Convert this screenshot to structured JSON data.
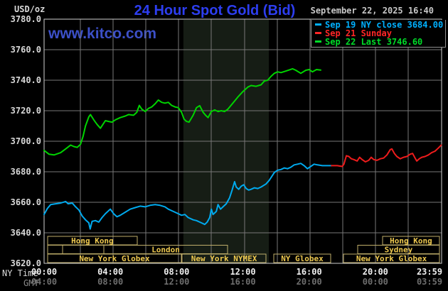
{
  "header": {
    "unit": "USD/oz",
    "title": "24 Hour Spot Gold (Bid)",
    "date": "September 22, 2025 16:40",
    "watermark": "www.kitco.com"
  },
  "legend": {
    "entries": [
      {
        "label": "Sep 19 NY close 3684.00",
        "color": "#00b0ff"
      },
      {
        "label": "Sep 21 Sunday",
        "color": "#ff2626"
      },
      {
        "label": "Sep 22 Last 3746.60",
        "color": "#00dc28"
      }
    ]
  },
  "axis": {
    "ny_label": "NY Time",
    "gmt_label": "GMT",
    "tick_hours": [
      0,
      4,
      8,
      12,
      16,
      20,
      23.983
    ],
    "ny_ticks": [
      "00:00",
      "04:00",
      "08:00",
      "12:00",
      "16:00",
      "20:00",
      "23:59"
    ],
    "gmt_ticks": [
      "04:00",
      "08:00",
      "12:00",
      "16:00",
      "20:00",
      "00:00",
      "03:59"
    ],
    "y_tick_values": [
      3780,
      3760,
      3740,
      3720,
      3700,
      3680,
      3660,
      3640,
      3620
    ],
    "y_tick_labels": [
      "3780.0",
      "3760.0",
      "3740.0",
      "3720.0",
      "3700.0",
      "3680.0",
      "3660.0",
      "3640.0",
      "3620.0"
    ]
  },
  "chart_data": {
    "type": "line",
    "title": "24 Hour Spot Gold (Bid)",
    "ylabel": "USD/oz",
    "xlabel": "NY Time",
    "x_range_hours": [
      0,
      24
    ],
    "ylim": [
      3620,
      3780
    ],
    "y_step": 20,
    "grid": true,
    "x_gridline_every_hours": 2,
    "shaded_band_hours": [
      8.41,
      13.57
    ],
    "colors": {
      "background": "#000000",
      "gridline": "#787878",
      "border": "#cfcfcf",
      "shaded_band": "#161d15",
      "session_border": "#bfae6a",
      "session_text": "#edc84f"
    },
    "series": [
      {
        "name": "Sep 19 NY close 3684.00",
        "color": "#00aaee",
        "points": [
          [
            0,
            3652
          ],
          [
            0.2,
            3656
          ],
          [
            0.4,
            3658.5
          ],
          [
            0.7,
            3659
          ],
          [
            1,
            3659.5
          ],
          [
            1.3,
            3660.5
          ],
          [
            1.45,
            3659
          ],
          [
            1.7,
            3659.5
          ],
          [
            1.9,
            3657
          ],
          [
            2.1,
            3655
          ],
          [
            2.3,
            3651
          ],
          [
            2.5,
            3648.5
          ],
          [
            2.7,
            3646.5
          ],
          [
            2.78,
            3642.5
          ],
          [
            2.9,
            3647.5
          ],
          [
            3.1,
            3648
          ],
          [
            3.3,
            3647
          ],
          [
            3.5,
            3650
          ],
          [
            3.7,
            3652.5
          ],
          [
            3.9,
            3654.5
          ],
          [
            4,
            3655.5
          ],
          [
            4.2,
            3652.5
          ],
          [
            4.4,
            3650.5
          ],
          [
            4.6,
            3651.5
          ],
          [
            4.9,
            3653.5
          ],
          [
            5.2,
            3655.5
          ],
          [
            5.5,
            3656.5
          ],
          [
            5.8,
            3657.5
          ],
          [
            6.1,
            3657
          ],
          [
            6.4,
            3658
          ],
          [
            6.7,
            3658.5
          ],
          [
            7,
            3658
          ],
          [
            7.3,
            3657
          ],
          [
            7.5,
            3655.5
          ],
          [
            7.8,
            3654
          ],
          [
            8.1,
            3652.5
          ],
          [
            8.3,
            3651.5
          ],
          [
            8.5,
            3652
          ],
          [
            8.7,
            3650
          ],
          [
            9,
            3648.5
          ],
          [
            9.2,
            3648
          ],
          [
            9.5,
            3646.5
          ],
          [
            9.7,
            3645.5
          ],
          [
            9.85,
            3647
          ],
          [
            10,
            3650
          ],
          [
            10.1,
            3655.5
          ],
          [
            10.2,
            3652
          ],
          [
            10.4,
            3654
          ],
          [
            10.5,
            3658.5
          ],
          [
            10.65,
            3655.5
          ],
          [
            10.8,
            3657
          ],
          [
            11,
            3659
          ],
          [
            11.2,
            3663
          ],
          [
            11.35,
            3668
          ],
          [
            11.5,
            3673.5
          ],
          [
            11.6,
            3670
          ],
          [
            11.75,
            3668.5
          ],
          [
            11.9,
            3670.5
          ],
          [
            12.05,
            3671.5
          ],
          [
            12.2,
            3669
          ],
          [
            12.35,
            3668
          ],
          [
            12.5,
            3668.5
          ],
          [
            12.7,
            3669.5
          ],
          [
            12.9,
            3669
          ],
          [
            13.1,
            3670
          ],
          [
            13.4,
            3672
          ],
          [
            13.6,
            3674.5
          ],
          [
            13.75,
            3677
          ],
          [
            13.9,
            3679.5
          ],
          [
            14.1,
            3681
          ],
          [
            14.3,
            3681.5
          ],
          [
            14.5,
            3682.5
          ],
          [
            14.7,
            3682
          ],
          [
            14.9,
            3683
          ],
          [
            15.1,
            3684.5
          ],
          [
            15.3,
            3685
          ],
          [
            15.5,
            3685.5
          ],
          [
            15.7,
            3684
          ],
          [
            15.9,
            3682
          ],
          [
            16.1,
            3683.5
          ],
          [
            16.3,
            3685
          ],
          [
            16.5,
            3684.5
          ],
          [
            16.8,
            3684
          ],
          [
            17.1,
            3684
          ],
          [
            17.35,
            3684
          ]
        ]
      },
      {
        "name": "Sep 21 Sunday",
        "color": "#ee1c1c",
        "points": [
          [
            17.35,
            3684
          ],
          [
            17.7,
            3684
          ],
          [
            18,
            3683.5
          ],
          [
            18.1,
            3685
          ],
          [
            18.25,
            3690.5
          ],
          [
            18.4,
            3690
          ],
          [
            18.55,
            3688.5
          ],
          [
            18.7,
            3688
          ],
          [
            18.9,
            3687
          ],
          [
            19.05,
            3689.5
          ],
          [
            19.2,
            3688
          ],
          [
            19.4,
            3686.5
          ],
          [
            19.6,
            3687.5
          ],
          [
            19.75,
            3689.5
          ],
          [
            19.9,
            3688
          ],
          [
            20.1,
            3687.5
          ],
          [
            20.3,
            3688.5
          ],
          [
            20.5,
            3689
          ],
          [
            20.7,
            3691
          ],
          [
            20.9,
            3694.5
          ],
          [
            21,
            3695
          ],
          [
            21.15,
            3692
          ],
          [
            21.3,
            3690
          ],
          [
            21.5,
            3688.5
          ],
          [
            21.7,
            3689.5
          ],
          [
            21.9,
            3690
          ],
          [
            22.1,
            3691.5
          ],
          [
            22.25,
            3692
          ],
          [
            22.4,
            3689
          ],
          [
            22.5,
            3687
          ],
          [
            22.65,
            3688.5
          ],
          [
            22.8,
            3689.5
          ],
          [
            23,
            3690
          ],
          [
            23.2,
            3691
          ],
          [
            23.4,
            3692.5
          ],
          [
            23.6,
            3693.5
          ],
          [
            23.8,
            3695.5
          ],
          [
            23.98,
            3697.5
          ]
        ]
      },
      {
        "name": "Sep 22 Last 3746.60",
        "color": "#00d400",
        "points": [
          [
            0,
            3694
          ],
          [
            0.3,
            3691.5
          ],
          [
            0.6,
            3691
          ],
          [
            1,
            3692.5
          ],
          [
            1.3,
            3695
          ],
          [
            1.6,
            3697.5
          ],
          [
            1.8,
            3696.5
          ],
          [
            2,
            3696
          ],
          [
            2.2,
            3698
          ],
          [
            2.35,
            3703
          ],
          [
            2.5,
            3710
          ],
          [
            2.7,
            3716
          ],
          [
            2.8,
            3717.5
          ],
          [
            3,
            3714
          ],
          [
            3.2,
            3711
          ],
          [
            3.4,
            3708.5
          ],
          [
            3.55,
            3711
          ],
          [
            3.7,
            3713.5
          ],
          [
            3.9,
            3713
          ],
          [
            4.1,
            3712.5
          ],
          [
            4.3,
            3714
          ],
          [
            4.6,
            3715.5
          ],
          [
            4.9,
            3716.5
          ],
          [
            5.1,
            3717.5
          ],
          [
            5.4,
            3717
          ],
          [
            5.6,
            3719
          ],
          [
            5.75,
            3723.5
          ],
          [
            5.9,
            3721
          ],
          [
            6.1,
            3719.5
          ],
          [
            6.3,
            3721.5
          ],
          [
            6.5,
            3722.5
          ],
          [
            6.7,
            3724.5
          ],
          [
            6.9,
            3727
          ],
          [
            7.1,
            3725.5
          ],
          [
            7.3,
            3725
          ],
          [
            7.5,
            3725.5
          ],
          [
            7.7,
            3723.5
          ],
          [
            7.9,
            3722.5
          ],
          [
            8.1,
            3722
          ],
          [
            8.3,
            3719
          ],
          [
            8.45,
            3714.5
          ],
          [
            8.6,
            3713
          ],
          [
            8.75,
            3712.5
          ],
          [
            9,
            3717
          ],
          [
            9.2,
            3722
          ],
          [
            9.4,
            3723.3
          ],
          [
            9.6,
            3719
          ],
          [
            9.75,
            3717
          ],
          [
            9.9,
            3715.5
          ],
          [
            10.1,
            3719.5
          ],
          [
            10.3,
            3720.5
          ],
          [
            10.5,
            3719.5
          ],
          [
            10.7,
            3720
          ],
          [
            10.9,
            3719.5
          ],
          [
            11.1,
            3721
          ],
          [
            11.4,
            3725
          ],
          [
            11.7,
            3729
          ],
          [
            12,
            3732.5
          ],
          [
            12.3,
            3735.5
          ],
          [
            12.5,
            3736.5
          ],
          [
            12.8,
            3736
          ],
          [
            13.1,
            3737
          ],
          [
            13.3,
            3739.5
          ],
          [
            13.5,
            3740
          ],
          [
            13.7,
            3742.5
          ],
          [
            13.9,
            3744.5
          ],
          [
            14.1,
            3745.5
          ],
          [
            14.3,
            3745
          ],
          [
            14.6,
            3746
          ],
          [
            15,
            3747.5
          ],
          [
            15.2,
            3746.5
          ],
          [
            15.5,
            3744.5
          ],
          [
            15.8,
            3746.5
          ],
          [
            16,
            3747
          ],
          [
            16.2,
            3745.5
          ],
          [
            16.45,
            3747
          ],
          [
            16.7,
            3746.6
          ]
        ]
      }
    ],
    "sessions": [
      {
        "row": 0,
        "label": "Hong Kong",
        "start_h": 0.21,
        "end_h": 5.62
      },
      {
        "row": 0,
        "label": "Hong Kong",
        "start_h": 20.43,
        "end_h": 23.87
      },
      {
        "row": 1,
        "label": "",
        "start_h": 0.21,
        "end_h": 1.12
      },
      {
        "row": 1,
        "label": "",
        "start_h": 1.12,
        "end_h": 3.61
      },
      {
        "row": 1,
        "label": "London",
        "start_h": 3.61,
        "end_h": 11.08
      },
      {
        "row": 1,
        "label": "Sydney",
        "start_h": 18.93,
        "end_h": 23.87
      },
      {
        "row": 2,
        "label": "New York Globex",
        "start_h": 0.21,
        "end_h": 8.29
      },
      {
        "row": 2,
        "label": "New York NYMEX",
        "start_h": 8.33,
        "end_h": 13.4
      },
      {
        "row": 2,
        "label": "NY Globex",
        "start_h": 13.87,
        "end_h": 17.3
      },
      {
        "row": 2,
        "label": "New York Globex",
        "start_h": 18.08,
        "end_h": 23.87
      }
    ]
  }
}
